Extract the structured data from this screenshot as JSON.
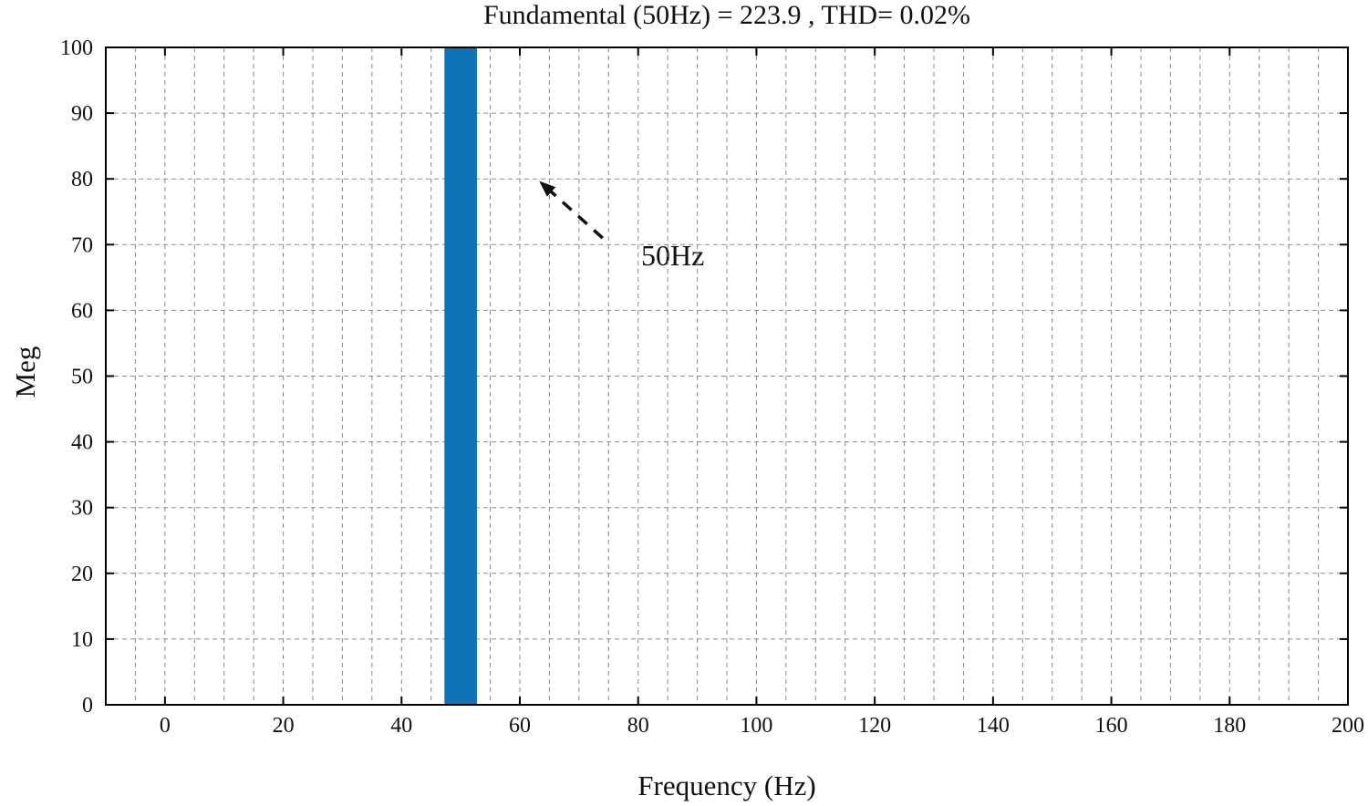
{
  "chart_data": {
    "type": "bar",
    "title": "Fundamental (50Hz) = 223.9 , THD= 0.02%",
    "xlabel": "Frequency (Hz)",
    "ylabel": "Meg",
    "xlim": [
      -10,
      200
    ],
    "ylim": [
      0,
      100
    ],
    "x_ticks": [
      0,
      20,
      40,
      60,
      80,
      100,
      120,
      140,
      160,
      180,
      200
    ],
    "y_ticks": [
      0,
      10,
      20,
      30,
      40,
      50,
      60,
      70,
      80,
      90,
      100
    ],
    "x_grid_step": 5,
    "y_grid_step": 10,
    "grid_style": "dashed",
    "legend": "none",
    "bar_color": "#0e74b6",
    "frame_color": "#000000",
    "grid_color": "#8a8a8a",
    "bars": [
      {
        "x": 50,
        "value": 100,
        "width_hz": 5.5
      }
    ],
    "annotation": {
      "text": "50Hz",
      "arrow_tail": {
        "x": 74,
        "y": 71
      },
      "arrow_head": {
        "x": 63.5,
        "y": 79.5
      }
    }
  }
}
